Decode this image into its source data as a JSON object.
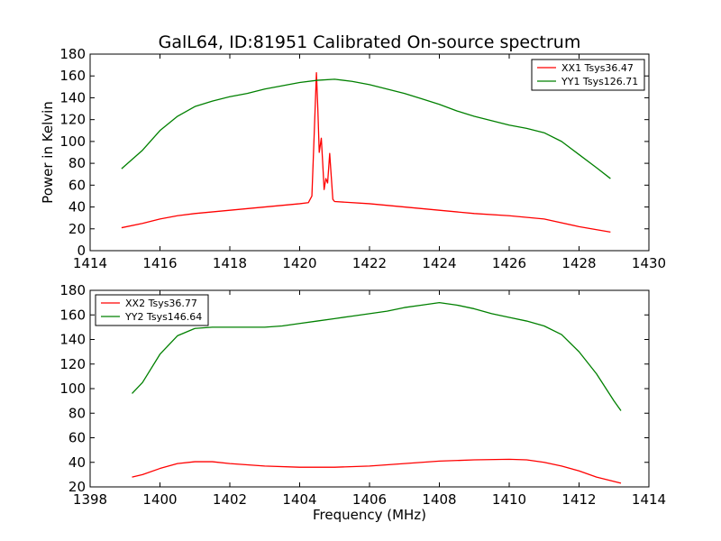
{
  "title": "GalL64, ID:81951 Calibrated On-source spectrum",
  "shared_ylabel": "Power in Kelvin",
  "shared_xlabel": "Frequency (MHz)",
  "chart_data": [
    {
      "type": "line",
      "xlim": [
        1414,
        1430
      ],
      "ylim": [
        0,
        180
      ],
      "xticks": [
        1414,
        1416,
        1418,
        1420,
        1422,
        1424,
        1426,
        1428,
        1430
      ],
      "yticks": [
        0,
        20,
        40,
        60,
        80,
        100,
        120,
        140,
        160,
        180
      ],
      "legend_position": "top-right",
      "series": [
        {
          "name": "XX1 Tsys36.47",
          "color": "#ff0000",
          "points": [
            [
              1414.9,
              21
            ],
            [
              1415.5,
              25
            ],
            [
              1416,
              29
            ],
            [
              1416.5,
              32
            ],
            [
              1417,
              34
            ],
            [
              1418,
              37
            ],
            [
              1419,
              40
            ],
            [
              1420,
              43
            ],
            [
              1420.25,
              44
            ],
            [
              1420.35,
              50
            ],
            [
              1420.42,
              110
            ],
            [
              1420.48,
              163
            ],
            [
              1420.52,
              130
            ],
            [
              1420.56,
              90
            ],
            [
              1420.62,
              103
            ],
            [
              1420.66,
              80
            ],
            [
              1420.7,
              56
            ],
            [
              1420.75,
              66
            ],
            [
              1420.8,
              62
            ],
            [
              1420.86,
              89
            ],
            [
              1420.9,
              70
            ],
            [
              1420.95,
              47
            ],
            [
              1421,
              45
            ],
            [
              1422,
              43
            ],
            [
              1423,
              40
            ],
            [
              1424,
              37
            ],
            [
              1425,
              34
            ],
            [
              1426,
              32
            ],
            [
              1427,
              29
            ],
            [
              1428,
              22
            ],
            [
              1428.9,
              17
            ]
          ]
        },
        {
          "name": "YY1 Tsys126.71",
          "color": "#008000",
          "points": [
            [
              1414.9,
              75
            ],
            [
              1415.5,
              92
            ],
            [
              1416,
              110
            ],
            [
              1416.5,
              123
            ],
            [
              1417,
              132
            ],
            [
              1417.5,
              137
            ],
            [
              1418,
              141
            ],
            [
              1418.5,
              144
            ],
            [
              1419,
              148
            ],
            [
              1419.5,
              151
            ],
            [
              1420,
              154
            ],
            [
              1420.5,
              156
            ],
            [
              1421,
              157
            ],
            [
              1421.5,
              155
            ],
            [
              1422,
              152
            ],
            [
              1422.5,
              148
            ],
            [
              1423,
              144
            ],
            [
              1423.5,
              139
            ],
            [
              1424,
              134
            ],
            [
              1424.5,
              128
            ],
            [
              1425,
              123
            ],
            [
              1425.5,
              119
            ],
            [
              1426,
              115
            ],
            [
              1426.5,
              112
            ],
            [
              1427,
              108
            ],
            [
              1427.5,
              100
            ],
            [
              1428,
              88
            ],
            [
              1428.5,
              76
            ],
            [
              1428.9,
              66
            ]
          ]
        }
      ]
    },
    {
      "type": "line",
      "xlim": [
        1398,
        1414
      ],
      "ylim": [
        20,
        180
      ],
      "xticks": [
        1398,
        1400,
        1402,
        1404,
        1406,
        1408,
        1410,
        1412,
        1414
      ],
      "yticks": [
        20,
        40,
        60,
        80,
        100,
        120,
        140,
        160,
        180
      ],
      "legend_position": "top-left",
      "series": [
        {
          "name": "XX2 Tsys36.77",
          "color": "#ff0000",
          "points": [
            [
              1399.2,
              28
            ],
            [
              1399.5,
              30
            ],
            [
              1400,
              35
            ],
            [
              1400.5,
              39
            ],
            [
              1401,
              40.5
            ],
            [
              1401.5,
              40.5
            ],
            [
              1402,
              39
            ],
            [
              1402.5,
              38
            ],
            [
              1403,
              37
            ],
            [
              1404,
              36
            ],
            [
              1405,
              36
            ],
            [
              1406,
              37
            ],
            [
              1407,
              39
            ],
            [
              1408,
              41
            ],
            [
              1409,
              42
            ],
            [
              1410,
              42.5
            ],
            [
              1410.5,
              42
            ],
            [
              1411,
              40
            ],
            [
              1411.5,
              37
            ],
            [
              1412,
              33
            ],
            [
              1412.5,
              28
            ],
            [
              1413.2,
              23
            ]
          ]
        },
        {
          "name": "YY2 Tsys146.64",
          "color": "#008000",
          "points": [
            [
              1399.2,
              96
            ],
            [
              1399.5,
              105
            ],
            [
              1400,
              128
            ],
            [
              1400.5,
              143
            ],
            [
              1401,
              149
            ],
            [
              1401.5,
              150
            ],
            [
              1402,
              150
            ],
            [
              1402.5,
              150
            ],
            [
              1403,
              150
            ],
            [
              1403.5,
              151
            ],
            [
              1404,
              153
            ],
            [
              1404.5,
              155
            ],
            [
              1405,
              157
            ],
            [
              1405.5,
              159
            ],
            [
              1406,
              161
            ],
            [
              1406.5,
              163
            ],
            [
              1407,
              166
            ],
            [
              1407.5,
              168
            ],
            [
              1408,
              170
            ],
            [
              1408.5,
              168
            ],
            [
              1409,
              165
            ],
            [
              1409.5,
              161
            ],
            [
              1410,
              158
            ],
            [
              1410.5,
              155
            ],
            [
              1411,
              151
            ],
            [
              1411.5,
              144
            ],
            [
              1412,
              130
            ],
            [
              1412.5,
              112
            ],
            [
              1413,
              90
            ],
            [
              1413.2,
              82
            ]
          ]
        }
      ]
    }
  ]
}
